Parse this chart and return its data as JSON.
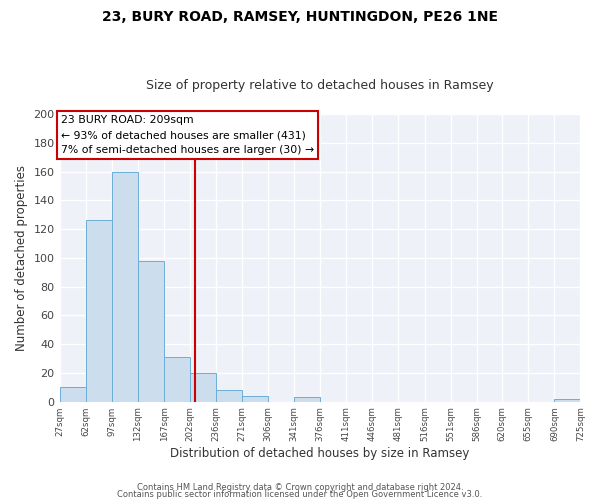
{
  "title": "23, BURY ROAD, RAMSEY, HUNTINGDON, PE26 1NE",
  "subtitle": "Size of property relative to detached houses in Ramsey",
  "xlabel": "Distribution of detached houses by size in Ramsey",
  "ylabel": "Number of detached properties",
  "footer_line1": "Contains HM Land Registry data © Crown copyright and database right 2024.",
  "footer_line2": "Contains public sector information licensed under the Open Government Licence v3.0.",
  "bin_edges": [
    27,
    62,
    97,
    132,
    167,
    202,
    236,
    271,
    306,
    341,
    376,
    411,
    446,
    481,
    516,
    551,
    586,
    620,
    655,
    690,
    725
  ],
  "bin_counts": [
    10,
    126,
    160,
    98,
    31,
    20,
    8,
    4,
    0,
    3,
    0,
    0,
    0,
    0,
    0,
    0,
    0,
    0,
    0,
    2
  ],
  "property_value": 209,
  "property_label": "23 BURY ROAD: 209sqm",
  "annotation_line2": "← 93% of detached houses are smaller (431)",
  "annotation_line3": "7% of semi-detached houses are larger (30) →",
  "bar_color": "#ccdded",
  "bar_edge_color": "#6aaed6",
  "vline_color": "#cc0000",
  "annotation_box_edge_color": "#cc0000",
  "background_color": "#eef2f8",
  "ylim": [
    0,
    200
  ],
  "tick_labels": [
    "27sqm",
    "62sqm",
    "97sqm",
    "132sqm",
    "167sqm",
    "202sqm",
    "236sqm",
    "271sqm",
    "306sqm",
    "341sqm",
    "376sqm",
    "411sqm",
    "446sqm",
    "481sqm",
    "516sqm",
    "551sqm",
    "586sqm",
    "620sqm",
    "655sqm",
    "690sqm",
    "725sqm"
  ]
}
